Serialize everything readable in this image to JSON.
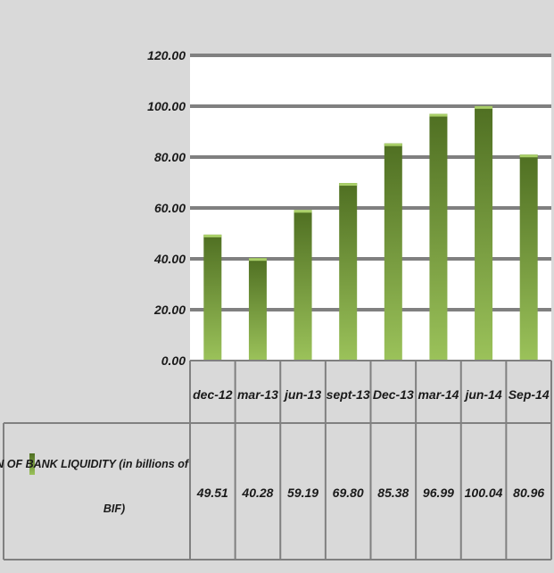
{
  "chart_data": {
    "type": "bar",
    "categories": [
      "dec-12",
      "mar-13",
      "jun-13",
      "sept-13",
      "Dec-13",
      "mar-14",
      "jun-14",
      "Sep-14"
    ],
    "series": [
      {
        "name": "EVOLUTION OF BANK LIQUIDITY (in billions of BIF)",
        "values": [
          49.51,
          40.28,
          59.19,
          69.8,
          85.38,
          96.99,
          100.04,
          80.96
        ],
        "value_labels": [
          "49.51",
          "40.28",
          "59.19",
          "69.80",
          "85.38",
          "96.99",
          "100.04",
          "80.96"
        ]
      }
    ],
    "legend_lines": [
      "EVOLUTION OF BANK LIQUIDITY (in billions of",
      "BIF)"
    ],
    "y_ticks": [
      "0.00",
      "20.00",
      "40.00",
      "60.00",
      "80.00",
      "100.00",
      "120.00"
    ],
    "ylim": [
      0,
      120
    ],
    "grid": true,
    "legend_placement": "data-table",
    "data_table": true,
    "colors": {
      "background": "#d9d9d9",
      "plot_background": "#ffffff",
      "gridline": "#808080",
      "bar_top": "#4f6f22",
      "bar_bottom": "#9bc25a",
      "bar_cap": "#a9cf68",
      "table_line": "#808080"
    }
  }
}
